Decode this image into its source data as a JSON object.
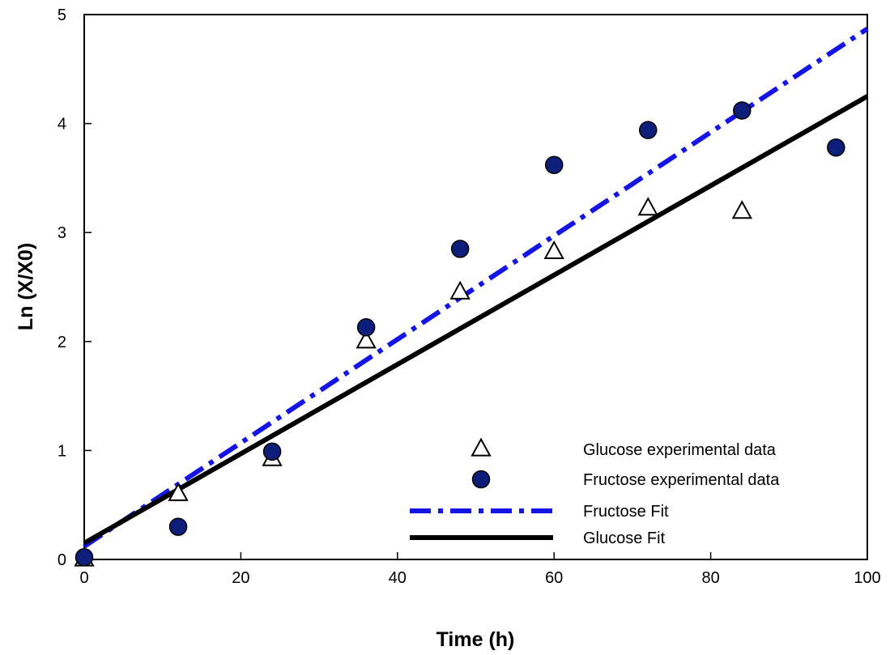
{
  "chart_data": {
    "type": "scatter",
    "title": "",
    "xlabel": "Time (h)",
    "ylabel": "Ln (X/X0)",
    "xlim": [
      0,
      100
    ],
    "ylim": [
      0,
      5
    ],
    "x_ticks": [
      0,
      20,
      40,
      60,
      80,
      100
    ],
    "y_ticks": [
      0,
      1,
      2,
      3,
      4,
      5
    ],
    "grid": false,
    "legend_position": "bottom-right",
    "series": [
      {
        "name": "Glucose experimental data",
        "kind": "scatter",
        "marker": "open-triangle",
        "color": "#000000",
        "points": [
          [
            0,
            0.0
          ],
          [
            12,
            0.6
          ],
          [
            24,
            0.92
          ],
          [
            36,
            2.0
          ],
          [
            48,
            2.45
          ],
          [
            60,
            2.82
          ],
          [
            72,
            3.22
          ],
          [
            84,
            3.19
          ]
        ]
      },
      {
        "name": "Fructose experimental data",
        "kind": "scatter",
        "marker": "filled-circle",
        "color": "#0d1f7a",
        "points": [
          [
            0,
            0.02
          ],
          [
            12,
            0.3
          ],
          [
            24,
            0.99
          ],
          [
            36,
            2.13
          ],
          [
            48,
            2.85
          ],
          [
            60,
            3.62
          ],
          [
            72,
            3.94
          ],
          [
            84,
            4.12
          ],
          [
            96,
            3.78
          ]
        ]
      },
      {
        "name": "Fructose Fit",
        "kind": "line",
        "style": "dash-dot",
        "color": "#1414e6",
        "points": [
          [
            0,
            0.12
          ],
          [
            100,
            4.87
          ]
        ]
      },
      {
        "name": "Glucose Fit",
        "kind": "line",
        "style": "solid",
        "color": "#000000",
        "points": [
          [
            0,
            0.15
          ],
          [
            100,
            4.25
          ]
        ]
      }
    ]
  }
}
